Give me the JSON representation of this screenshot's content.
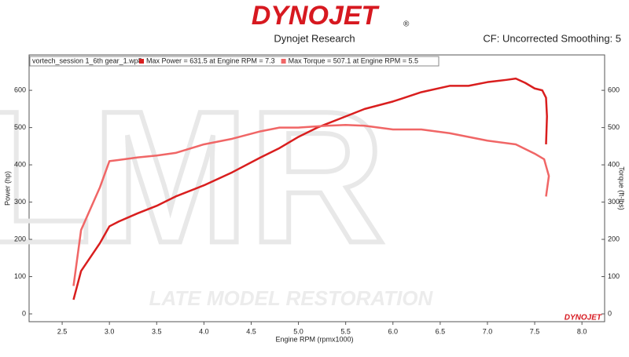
{
  "chart_data": {
    "type": "line",
    "logo": "DYNOJET",
    "logo_mark": "®",
    "title": "Dynojet Research",
    "subtitle": "CF: Uncorrected Smoothing: 5",
    "legend_title": "vortech_session 1_6th gear_1.wp8",
    "watermark": "LATE MODEL RESTORATION",
    "corner_logo": "DYNOJET",
    "x_label": "Engine RPM (rpmx1000)",
    "y_label": "Power (hp)",
    "y2_label": "Torque (ft-lbs)",
    "xlim": [
      2.15,
      8.24
    ],
    "ylim": [
      -21,
      695
    ],
    "y2lim": [
      -21,
      695
    ],
    "xticks": [
      2.5,
      {
        "value": 3,
        "label": "3.0"
      },
      3.5,
      {
        "value": 4,
        "label": "4.0"
      },
      4.5,
      {
        "value": 5,
        "label": "5.0"
      },
      5.5,
      {
        "value": 6,
        "label": "6.0"
      },
      6.5,
      {
        "value": 7,
        "label": "7.0"
      },
      7.5,
      {
        "value": 8,
        "label": "8.0"
      }
    ],
    "yticks": [
      0,
      100,
      200,
      300,
      400,
      500,
      600
    ],
    "y2ticks": [
      0,
      100,
      200,
      300,
      400,
      500,
      600
    ],
    "series": [
      {
        "name": "Max Power = 631.5 at Engine RPM = 7.3",
        "color": "#d91e1e",
        "x": [
          2.62,
          2.7,
          2.9,
          3.0,
          3.1,
          3.3,
          3.5,
          3.7,
          4.0,
          4.3,
          4.6,
          4.8,
          5.0,
          5.2,
          5.5,
          5.7,
          6.0,
          6.3,
          6.6,
          6.8,
          7.0,
          7.2,
          7.3,
          7.4,
          7.5,
          7.58,
          7.62,
          7.63,
          7.62
        ],
        "values": [
          38,
          115,
          190,
          235,
          248,
          270,
          290,
          315,
          345,
          380,
          420,
          445,
          475,
          500,
          530,
          550,
          570,
          595,
          612,
          612,
          622,
          628,
          631.5,
          620,
          605,
          600,
          580,
          530,
          455
        ]
      },
      {
        "name": "Max Torque = 507.1 at Engine RPM = 5.5",
        "color": "#f06666",
        "axis": "y2",
        "x": [
          2.62,
          2.7,
          2.9,
          3.0,
          3.1,
          3.3,
          3.5,
          3.7,
          4.0,
          4.3,
          4.6,
          4.8,
          5.0,
          5.3,
          5.5,
          5.7,
          6.0,
          6.3,
          6.6,
          6.8,
          7.0,
          7.3,
          7.5,
          7.6,
          7.65,
          7.62
        ],
        "values": [
          75,
          225,
          340,
          410,
          413,
          420,
          425,
          432,
          455,
          470,
          490,
          500,
          500,
          505,
          507.1,
          505,
          495,
          495,
          485,
          475,
          465,
          455,
          430,
          415,
          370,
          315
        ]
      }
    ]
  }
}
